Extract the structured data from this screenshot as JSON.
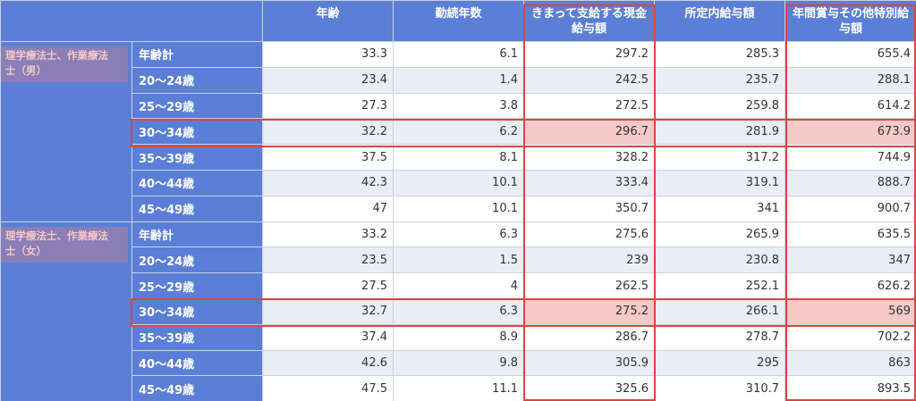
{
  "table": {
    "columns": [
      "年齢",
      "勤続年数",
      "きまって支給する現金給与額",
      "所定内給与額",
      "年間賞与その他特別給与額"
    ],
    "column_lines": [
      [
        "年齢"
      ],
      [
        "勤続年数"
      ],
      [
        "きまって支給する現金",
        "給与額"
      ],
      [
        "所定内給与額"
      ],
      [
        "年間賞与その他特別給",
        "与額"
      ]
    ],
    "groups": [
      {
        "label": "理学療法士、作業療法士（男）",
        "label_lines": [
          "理学療法士、作業療法",
          "士（男）"
        ],
        "rows": [
          {
            "age": "年齢計",
            "values": [
              "33.3",
              "6.1",
              "297.2",
              "285.3",
              "655.4"
            ]
          },
          {
            "age": "20〜24歳",
            "values": [
              "23.4",
              "1.4",
              "242.5",
              "235.7",
              "288.1"
            ]
          },
          {
            "age": "25〜29歳",
            "values": [
              "27.3",
              "3.8",
              "272.5",
              "259.8",
              "614.2"
            ]
          },
          {
            "age": "30〜34歳",
            "values": [
              "32.2",
              "6.2",
              "296.7",
              "281.9",
              "673.9"
            ],
            "highlight": true
          },
          {
            "age": "35〜39歳",
            "values": [
              "37.5",
              "8.1",
              "328.2",
              "317.2",
              "744.9"
            ]
          },
          {
            "age": "40〜44歳",
            "values": [
              "42.3",
              "10.1",
              "333.4",
              "319.1",
              "888.7"
            ]
          },
          {
            "age": "45〜49歳",
            "values": [
              "47",
              "10.1",
              "350.7",
              "341",
              "900.7"
            ]
          }
        ]
      },
      {
        "label": "理学療法士、作業療法士（女）",
        "label_lines": [
          "理学療法士、作業療法",
          "士（女）"
        ],
        "rows": [
          {
            "age": "年齢計",
            "values": [
              "33.2",
              "6.3",
              "275.6",
              "265.9",
              "635.5"
            ]
          },
          {
            "age": "20〜24歳",
            "values": [
              "23.5",
              "1.5",
              "239",
              "230.8",
              "347"
            ]
          },
          {
            "age": "25〜29歳",
            "values": [
              "27.5",
              "4",
              "262.5",
              "252.1",
              "626.2"
            ]
          },
          {
            "age": "30〜34歳",
            "values": [
              "32.7",
              "6.3",
              "275.2",
              "266.1",
              "569"
            ],
            "highlight": true
          },
          {
            "age": "35〜39歳",
            "values": [
              "37.4",
              "8.9",
              "286.7",
              "278.7",
              "702.2"
            ]
          },
          {
            "age": "40〜44歳",
            "values": [
              "42.6",
              "9.8",
              "305.9",
              "295",
              "863"
            ]
          },
          {
            "age": "45〜49歳",
            "values": [
              "47.5",
              "11.1",
              "325.6",
              "310.7",
              "893.5"
            ]
          }
        ]
      }
    ]
  },
  "colors": {
    "header_blue": "#5b7fd6",
    "group_label_purple": "#8a7fb6",
    "group_label_text": "#f7c7c7",
    "highlight_red": "#d9463e",
    "highlight_fill": "#f8d3d1",
    "stripe": "#e9edf5"
  }
}
